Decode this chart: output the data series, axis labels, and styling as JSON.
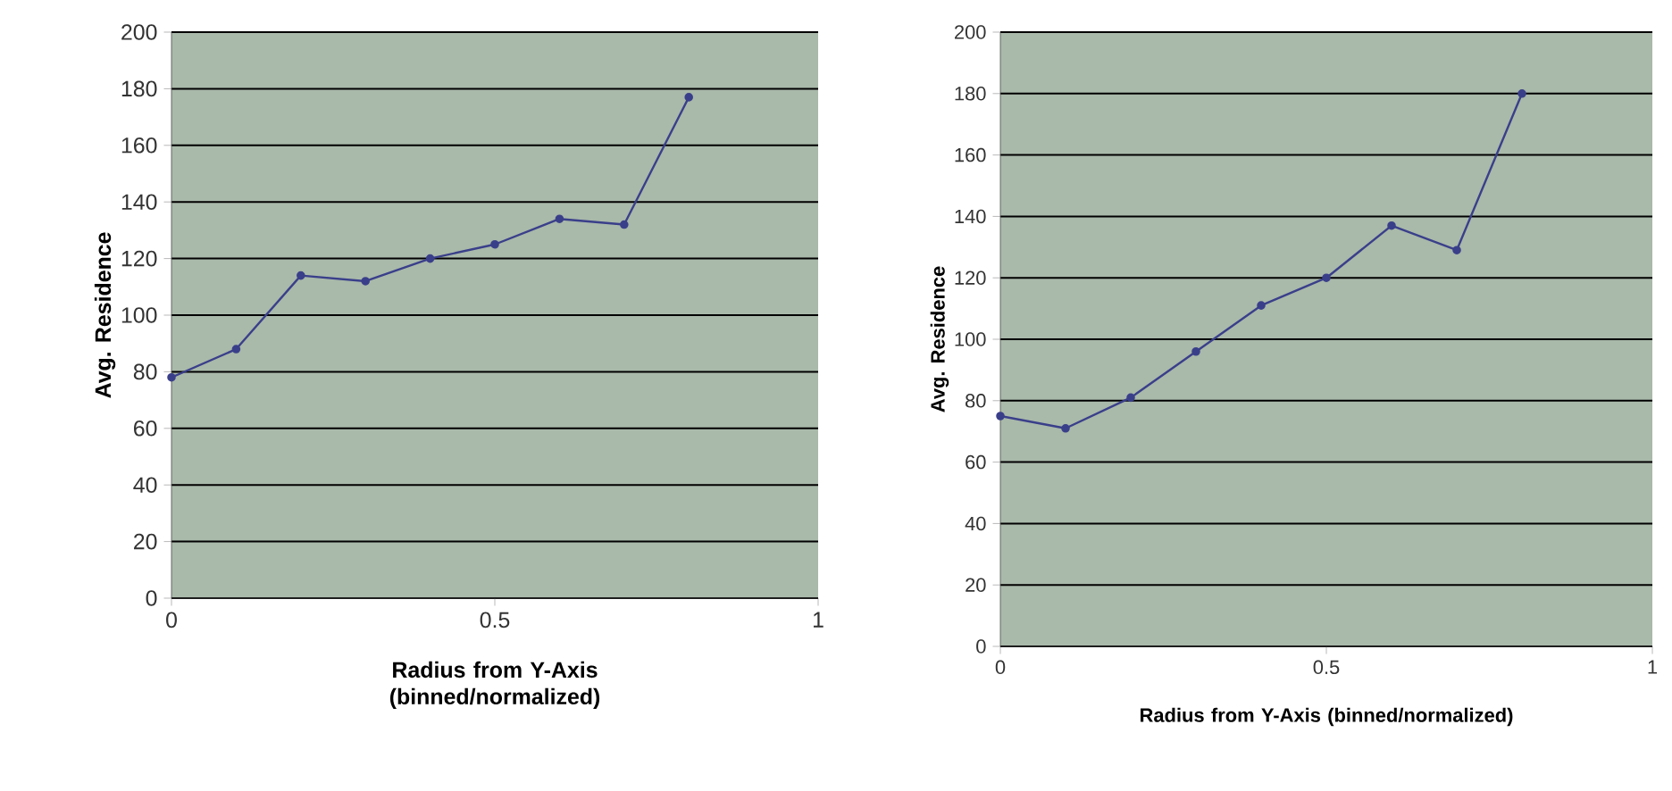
{
  "chart_data": [
    {
      "type": "line",
      "xlabel": "Radius from Y-Axis (binned/normalized)",
      "ylabel": "Avg. Residence",
      "x": [
        0,
        0.1,
        0.2,
        0.3,
        0.4,
        0.5,
        0.6,
        0.7,
        0.8
      ],
      "series": [
        {
          "color": "#3a3f8a",
          "values": [
            78,
            88,
            114,
            112,
            120,
            125,
            134,
            132,
            177
          ]
        }
      ],
      "xlim": [
        0,
        1
      ],
      "ylim": [
        0,
        200
      ],
      "xticks": [
        0,
        0.5,
        1
      ],
      "yticks": [
        0,
        20,
        40,
        60,
        80,
        100,
        120,
        140,
        160,
        180,
        200
      ],
      "grid": "y",
      "marker": "circle"
    },
    {
      "type": "line",
      "xlabel": "Radius from Y-Axis (binned/normalized)",
      "ylabel": "Avg. Residence",
      "x": [
        0,
        0.1,
        0.2,
        0.3,
        0.4,
        0.5,
        0.6,
        0.7,
        0.8
      ],
      "series": [
        {
          "color": "#3a3f8a",
          "values": [
            75,
            71,
            81,
            96,
            111,
            120,
            137,
            129,
            180
          ]
        }
      ],
      "xlim": [
        0,
        1
      ],
      "ylim": [
        0,
        200
      ],
      "xticks": [
        0,
        0.5,
        1
      ],
      "yticks": [
        0,
        20,
        40,
        60,
        80,
        100,
        120,
        140,
        160,
        180,
        200
      ],
      "grid": "y",
      "marker": "circle"
    }
  ]
}
